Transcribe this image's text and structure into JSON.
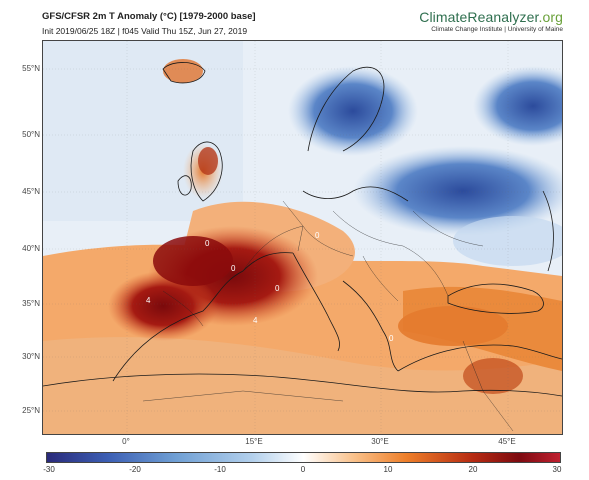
{
  "header": {
    "title": "GFS/CFSR 2m T Anomaly (°C) [1979-2000 base]",
    "subtitle": "Init 2019/06/25 18Z | f045 Valid Thu 15Z, Jun 27, 2019"
  },
  "brand": {
    "name_main": "ClimateReanalyzer",
    "name_tld": ".org",
    "tagline": "Climate Change Institute | University of Maine"
  },
  "axes": {
    "latitude_labels": [
      "55°N",
      "50°N",
      "45°N",
      "40°N",
      "35°N",
      "30°N",
      "25°N"
    ],
    "longitude_labels": [
      "0°",
      "15°E",
      "30°E",
      "45°E"
    ]
  },
  "colorbar": {
    "ticks": [
      "-30",
      "-20",
      "-10",
      "0",
      "10",
      "20",
      "30"
    ],
    "range": [
      -30,
      30
    ]
  },
  "map_labels": [
    "0",
    "0",
    "4",
    "4",
    "0",
    "0",
    "0"
  ],
  "colors": {
    "extreme_warm": "#8b0a0c",
    "warm": "#e8833a",
    "mild_warm": "#f6b47a",
    "cool": "#5f86c6",
    "cold": "#2f4fa0"
  }
}
